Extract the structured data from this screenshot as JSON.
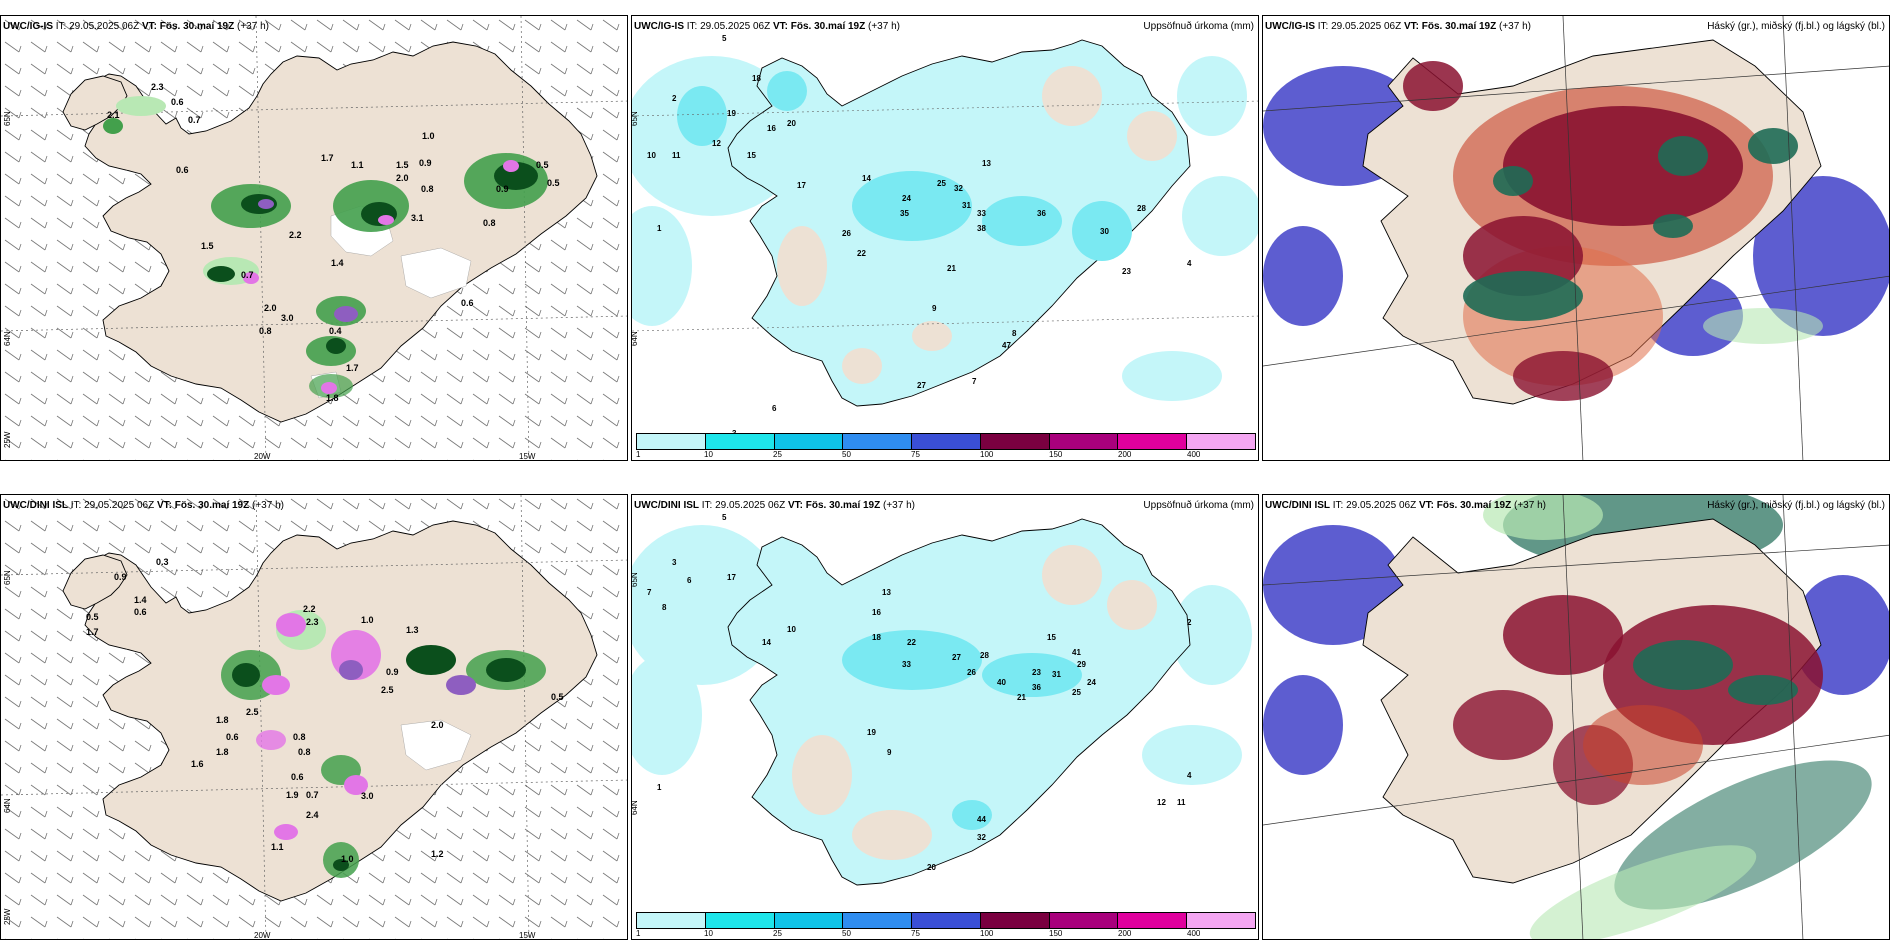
{
  "colors": {
    "land": "#ede1d4",
    "sea": "#ffffff",
    "precip_light_green": "#b8e8b4",
    "precip_mid_green": "#43a04c",
    "precip_dark_green": "#0b4f1c",
    "precip_violet": "#8e5ec0",
    "precip_magenta": "#e276e6",
    "cyan_light": "#c4f6f9",
    "cyan_mid": "#7ae9f2",
    "cloud_high": "#1e6b55",
    "cloud_mid": "#8a1230",
    "cloud_low": "#4141c8"
  },
  "panels": [
    {
      "id": "top-left",
      "model": "UWC/IG-IS",
      "it_label": "IT:",
      "it_value": "29.05.2025 06Z",
      "vt_label": "VT:",
      "vt_value": "Fös. 30.maí 19Z",
      "lead": "(+37 h)",
      "subtitle": "",
      "precip_values": [
        "2.3",
        "0.6",
        "0.7",
        "2.1",
        "0.6",
        "1.0",
        "0.9",
        "1.7",
        "1.1",
        "1.5",
        "2.0",
        "0.8",
        "0.5",
        "0.9",
        "0.8",
        "3.1",
        "1.4",
        "2.2",
        "2.0",
        "3.0",
        "0.8",
        "0.4",
        "1.7",
        "1.8",
        "0.7",
        "1.5",
        "0.5",
        "0.6"
      ],
      "lon_labels": [
        "20W",
        "15W"
      ],
      "lat_labels": [
        "65N",
        "64N",
        "25W"
      ]
    },
    {
      "id": "top-middle",
      "model": "UWC/IG-IS",
      "it_label": "IT:",
      "it_value": "29.05.2025 06Z",
      "vt_label": "VT:",
      "vt_value": "Fös. 30.maí 19Z",
      "lead": "(+37 h)",
      "subtitle": "Uppsöfnuð úrkoma (mm)",
      "precip_values": [
        "5",
        "2",
        "10",
        "11",
        "18",
        "16",
        "12",
        "19",
        "15",
        "20",
        "24",
        "14",
        "17",
        "33",
        "38",
        "31",
        "30",
        "36",
        "28",
        "32",
        "25",
        "22",
        "13",
        "9",
        "8",
        "4",
        "3",
        "6",
        "7",
        "1",
        "26",
        "21",
        "27",
        "23",
        "35",
        "47"
      ],
      "lat_labels": [
        "65N",
        "64N"
      ]
    },
    {
      "id": "top-right",
      "model": "UWC/IG-IS",
      "it_label": "IT:",
      "it_value": "29.05.2025 06Z",
      "vt_label": "VT:",
      "vt_value": "Fös. 30.maí 19Z",
      "lead": "(+37 h)",
      "subtitle": "Háský (gr.), miðský (fj.bl.) og lágský (bl.)"
    },
    {
      "id": "bottom-left",
      "model": "UWC/DINI ISL",
      "it_label": "IT:",
      "it_value": "29.05.2025 06Z",
      "vt_label": "VT:",
      "vt_value": "Fös. 30.maí 19Z",
      "lead": "(+37 h)",
      "subtitle": "",
      "precip_values": [
        "0.3",
        "0.9",
        "1.4",
        "0.6",
        "0.5",
        "1.7",
        "2.2",
        "2.5",
        "0.9",
        "1.3",
        "1.0",
        "2.3",
        "2.0",
        "0.5",
        "0.6",
        "1.8",
        "2.5",
        "0.8",
        "1.6",
        "0.6",
        "1.9",
        "0.7",
        "3.0",
        "1.1",
        "1.0",
        "2.4",
        "1.2",
        "1.8",
        "0.8"
      ],
      "lon_labels": [
        "20W",
        "15W"
      ],
      "lat_labels": [
        "65N",
        "64N",
        "25W"
      ]
    },
    {
      "id": "bottom-middle",
      "model": "UWC/DINI ISL",
      "it_label": "IT:",
      "it_value": "29.05.2025 06Z",
      "vt_label": "VT:",
      "vt_value": "Fös. 30.maí 19Z",
      "lead": "(+37 h)",
      "subtitle": "Uppsöfnuð úrkoma (mm)",
      "precip_values": [
        "5",
        "3",
        "7",
        "8",
        "6",
        "17",
        "10",
        "14",
        "16",
        "13",
        "18",
        "22",
        "27",
        "33",
        "40",
        "26",
        "23",
        "31",
        "41",
        "29",
        "28",
        "44",
        "20",
        "9",
        "4",
        "2",
        "1",
        "11",
        "12",
        "15",
        "19",
        "21",
        "25",
        "24",
        "32",
        "36"
      ],
      "lat_labels": [
        "65N",
        "64N"
      ]
    },
    {
      "id": "bottom-right",
      "model": "UWC/DINI ISL",
      "it_label": "IT:",
      "it_value": "29.05.2025 06Z",
      "vt_label": "VT:",
      "vt_value": "Fös. 30.maí 19Z",
      "lead": "(+37 h)",
      "subtitle": "Háský (gr.), miðský (fj.bl.) og lágský (bl.)"
    }
  ],
  "colorbar": {
    "labels": [
      "1",
      "10",
      "25",
      "50",
      "75",
      "100",
      "150",
      "200",
      "400"
    ],
    "colors": [
      "#c4f6f9",
      "#1ee5ea",
      "#0fc4e8",
      "#2f8df0",
      "#3a4fd6",
      "#7a0040",
      "#a8007c",
      "#e0009e",
      "#f4a6f2"
    ]
  }
}
